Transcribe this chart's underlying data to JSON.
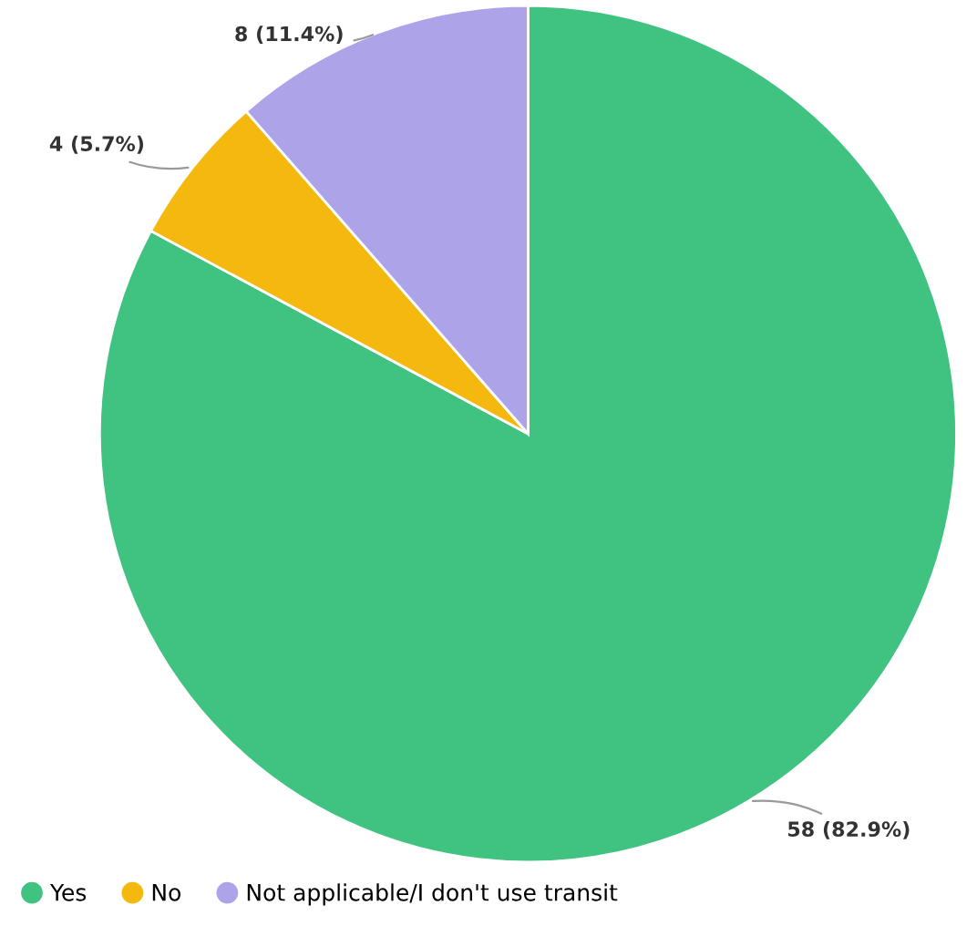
{
  "chart_data": {
    "type": "pie",
    "categories": [
      "Yes",
      "No",
      "Not applicable/I don't use transit"
    ],
    "values": [
      58,
      4,
      8
    ],
    "colors": [
      "#40c381",
      "#f4b80f",
      "#aca3e8"
    ],
    "value_labels": [
      "58 (82.9%)",
      "4 (5.7%)",
      "8 (11.4%)"
    ],
    "legend": "bottom left"
  }
}
